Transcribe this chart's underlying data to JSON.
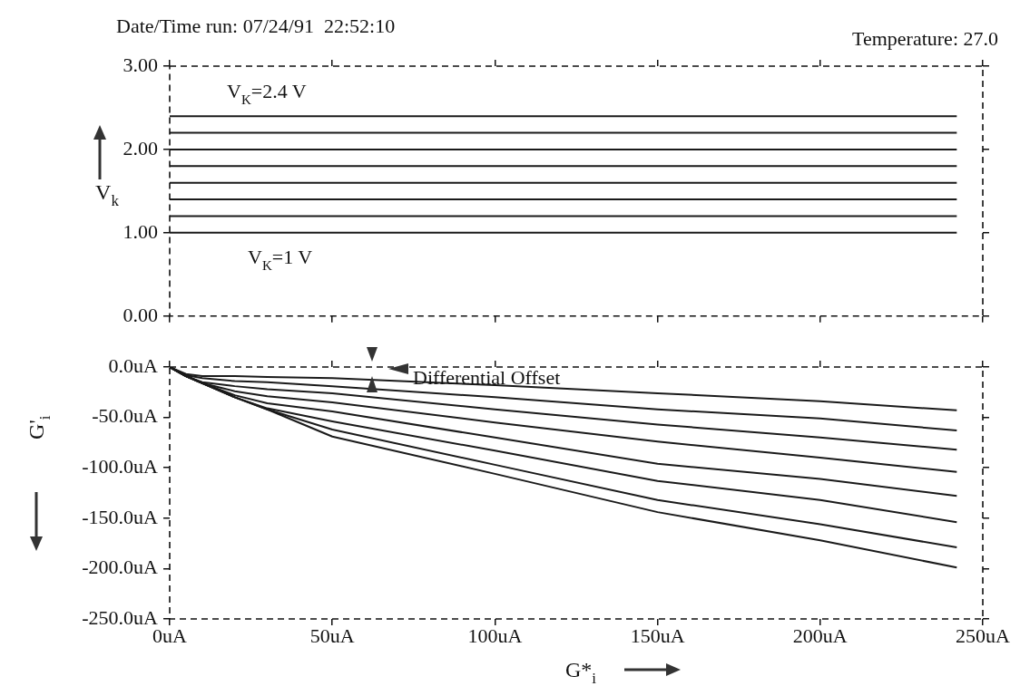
{
  "chart_data": [
    {
      "type": "line",
      "title": "Date/Time run: 07/24/91  22:52:10",
      "ylabel": "V$_{k}$",
      "annotations": [
        "Temperature: 27.0",
        "V$_{K}$=2.4 V",
        "V$_{K}$=1 V"
      ],
      "x": [
        0,
        242
      ],
      "series": [
        {
          "color": "#1a1a1a",
          "values": [
            2.4,
            2.4
          ]
        },
        {
          "color": "#1a1a1a",
          "values": [
            2.2,
            2.2
          ]
        },
        {
          "color": "#1a1a1a",
          "values": [
            2.0,
            2.0
          ]
        },
        {
          "color": "#1a1a1a",
          "values": [
            1.8,
            1.8
          ]
        },
        {
          "color": "#1a1a1a",
          "values": [
            1.6,
            1.6
          ]
        },
        {
          "color": "#1a1a1a",
          "values": [
            1.4,
            1.4
          ]
        },
        {
          "color": "#1a1a1a",
          "values": [
            1.2,
            1.2
          ]
        },
        {
          "color": "#1a1a1a",
          "values": [
            1.0,
            1.0
          ]
        }
      ],
      "xlim": [
        0,
        250
      ],
      "xticks": [
        {
          "value": 0,
          "label": null
        },
        {
          "value": 50,
          "label": null
        },
        {
          "value": 100,
          "label": null
        },
        {
          "value": 150,
          "label": null
        },
        {
          "value": 200,
          "label": null
        },
        {
          "value": 250,
          "label": null
        }
      ],
      "ylim": [
        0,
        3
      ],
      "yticks": [
        {
          "value": 0,
          "label": "0.00"
        },
        {
          "value": 1,
          "label": "1.00"
        },
        {
          "value": 2,
          "label": "2.00"
        },
        {
          "value": 3,
          "label": "3.00"
        }
      ],
      "tick_labels": "y",
      "grid": false,
      "legend": false
    },
    {
      "type": "line",
      "xlabel": "G*$_{i}$",
      "ylabel": "G'$_{i}$",
      "annotations": [
        "Differential Offset"
      ],
      "x": [
        0,
        5,
        10,
        20,
        30,
        50,
        100,
        150,
        200,
        242
      ],
      "series": [
        {
          "color": "#1a1a1a",
          "values": [
            0,
            -7,
            -9,
            -9,
            -10,
            -11,
            -18,
            -26,
            -34,
            -43
          ]
        },
        {
          "color": "#1a1a1a",
          "values": [
            0,
            -8,
            -11,
            -14,
            -15,
            -19,
            -30,
            -42,
            -51,
            -63
          ]
        },
        {
          "color": "#1a1a1a",
          "values": [
            0,
            -9,
            -15,
            -19,
            -22,
            -26,
            -42,
            -57,
            -70,
            -82
          ]
        },
        {
          "color": "#1a1a1a",
          "values": [
            0,
            -9,
            -16,
            -24,
            -29,
            -35,
            -55,
            -74,
            -90,
            -104
          ]
        },
        {
          "color": "#1a1a1a",
          "values": [
            0,
            -9,
            -16,
            -28,
            -36,
            -44,
            -70,
            -96,
            -111,
            -128
          ]
        },
        {
          "color": "#1a1a1a",
          "values": [
            0,
            -9,
            -16,
            -30,
            -41,
            -54,
            -83,
            -113,
            -132,
            -154
          ]
        },
        {
          "color": "#1a1a1a",
          "values": [
            0,
            -9,
            -16,
            -30,
            -42,
            -62,
            -97,
            -132,
            -156,
            -179
          ]
        },
        {
          "color": "#1a1a1a",
          "values": [
            0,
            -9,
            -16,
            -30,
            -42,
            -69,
            -106,
            -144,
            -172,
            -199
          ]
        }
      ],
      "xlim": [
        0,
        250
      ],
      "xticks": [
        {
          "value": 0,
          "label": "0uA"
        },
        {
          "value": 50,
          "label": "50uA"
        },
        {
          "value": 100,
          "label": "100uA"
        },
        {
          "value": 150,
          "label": "150uA"
        },
        {
          "value": 200,
          "label": "200uA"
        },
        {
          "value": 250,
          "label": "250uA"
        }
      ],
      "ylim": [
        -250,
        0
      ],
      "yticks": [
        {
          "value": 0,
          "label": "0.0uA"
        },
        {
          "value": -50,
          "label": "-50.0uA"
        },
        {
          "value": -100,
          "label": "-100.0uA"
        },
        {
          "value": -150,
          "label": "-150.0uA"
        },
        {
          "value": -200,
          "label": "-200.0uA"
        },
        {
          "value": -250,
          "label": "-250.0uA"
        }
      ],
      "grid": false,
      "legend": false
    }
  ]
}
